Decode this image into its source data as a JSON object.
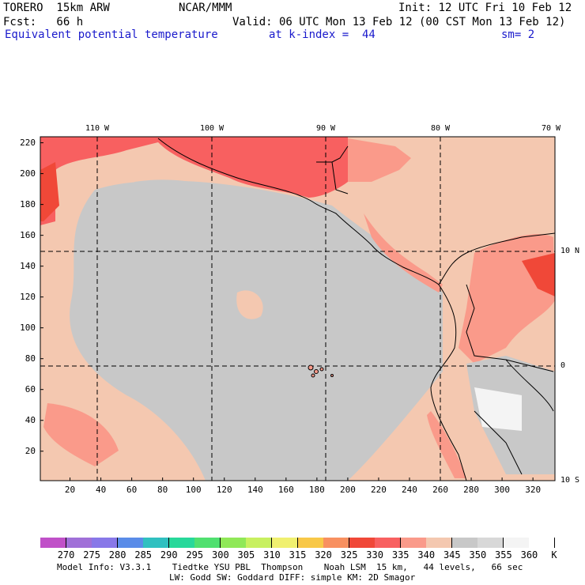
{
  "header": {
    "model": "TORERO  15km ARW",
    "org": "NCAR/MMM",
    "init": "Init: 12 UTC Fri 10 Feb 12",
    "fcst": "Fcst:   66 h",
    "valid": "Valid: 06 UTC Mon 13 Feb 12 (00 CST Mon 13 Feb 12)",
    "field": "Equivalent potential temperature",
    "level": "at k-index =  44",
    "smooth": "sm= 2"
  },
  "map": {
    "x_ticks": [
      "20",
      "40",
      "60",
      "80",
      "100",
      "120",
      "140",
      "160",
      "180",
      "200",
      "220",
      "240",
      "260",
      "280",
      "300",
      "320"
    ],
    "y_ticks": [
      "20",
      "40",
      "60",
      "80",
      "100",
      "120",
      "140",
      "160",
      "180",
      "200",
      "220"
    ],
    "lon_labels": [
      "110 W",
      "100 W",
      "90 W",
      "80 W",
      "70 W"
    ],
    "lat_labels": [
      "10 N",
      "0",
      "10 S"
    ]
  },
  "colorbar": {
    "unit": "K",
    "labels": [
      "270",
      "275",
      "280",
      "285",
      "290",
      "295",
      "300",
      "305",
      "310",
      "315",
      "320",
      "325",
      "330",
      "335",
      "340",
      "345",
      "350",
      "355",
      "360"
    ],
    "colors": [
      "#c050c8",
      "#a070d8",
      "#8878e8",
      "#5a8ce8",
      "#30c0c0",
      "#28d89a",
      "#50e070",
      "#90e858",
      "#c8f060",
      "#f0f070",
      "#f8c848",
      "#f89060",
      "#f04838",
      "#f86060",
      "#fa9a8a",
      "#f4c8b0",
      "#c8c8c8",
      "#d8d8d8",
      "#f4f4f4",
      "#ffffff"
    ]
  },
  "footer": {
    "line1": "Model Info: V3.3.1    Tiedtke YSU PBL  Thompson    Noah LSM  15 km,   44 levels,   66 sec",
    "line2": "LW: Godd SW: Goddard DIFF: simple KM: 2D Smagor"
  }
}
